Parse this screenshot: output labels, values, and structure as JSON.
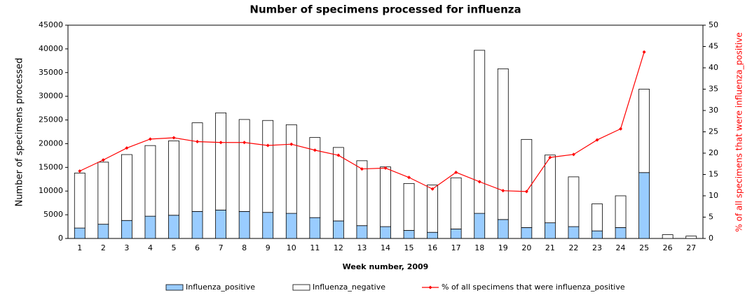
{
  "chart_data": {
    "type": "bar_line",
    "title": "Number of specimens processed for influenza",
    "x_label": "Week number, 2009",
    "y_label": "Number of specimens processed",
    "y2_label": "% of all specimens that were influenza_positive",
    "categories": [
      "1",
      "2",
      "3",
      "4",
      "5",
      "6",
      "7",
      "8",
      "9",
      "10",
      "11",
      "12",
      "13",
      "14",
      "15",
      "16",
      "17",
      "18",
      "19",
      "20",
      "21",
      "22",
      "23",
      "24",
      "25",
      "26",
      "27"
    ],
    "series": [
      {
        "name": "Influenza_positive",
        "type": "bar",
        "color": "#99ccff",
        "values": [
          2200,
          3000,
          3800,
          4700,
          4900,
          5700,
          6000,
          5700,
          5500,
          5300,
          4400,
          3700,
          2700,
          2500,
          1700,
          1300,
          2000,
          5300,
          4000,
          2300,
          3300,
          2500,
          1600,
          2300,
          13900,
          0,
          0
        ]
      },
      {
        "name": "Influenza_negative",
        "type": "bar",
        "color": "#ffffff",
        "values": [
          11600,
          13100,
          13900,
          14900,
          15700,
          18700,
          20500,
          19400,
          19400,
          18700,
          16900,
          15500,
          13700,
          12600,
          9900,
          10000,
          10800,
          34400,
          31800,
          18600,
          14300,
          10500,
          5700,
          6700,
          17600,
          800,
          500
        ]
      },
      {
        "name": "% of all specimens that were influenza_positive",
        "type": "line",
        "color": "#ff0000",
        "axis": "y2",
        "values": [
          15.8,
          18.4,
          21.2,
          23.3,
          23.6,
          22.7,
          22.5,
          22.5,
          21.8,
          22.1,
          20.7,
          19.5,
          16.3,
          16.5,
          14.3,
          11.6,
          15.5,
          13.3,
          11.2,
          11.0,
          19.0,
          19.7,
          23.1,
          25.7,
          43.7,
          null,
          null
        ]
      }
    ],
    "stacked": true,
    "ylim": [
      0,
      45000
    ],
    "yticks": [
      0,
      5000,
      10000,
      15000,
      20000,
      25000,
      30000,
      35000,
      40000,
      45000
    ],
    "y2lim": [
      0,
      50
    ],
    "y2ticks": [
      0,
      5,
      10,
      15,
      20,
      25,
      30,
      35,
      40,
      45,
      50
    ],
    "legend": "bottom"
  }
}
